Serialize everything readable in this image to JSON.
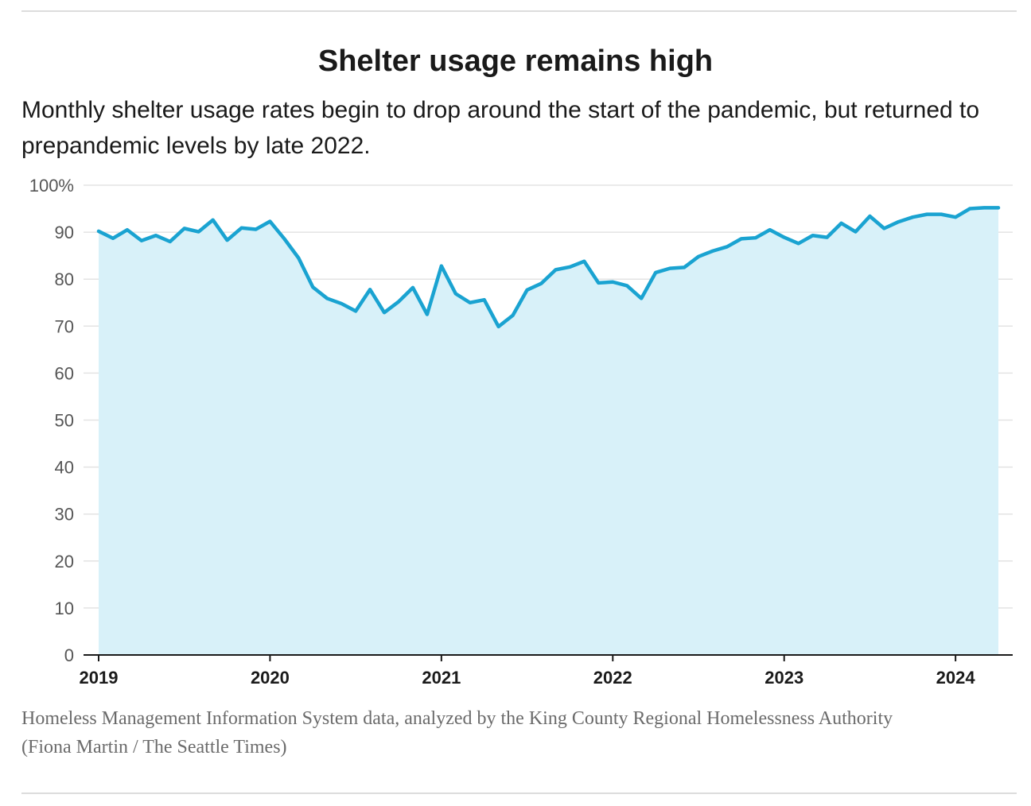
{
  "header": {
    "title": "Shelter usage remains high",
    "subtitle": "Monthly shelter usage rates begin to drop around the start of the pandemic, but returned to prepandemic levels by late 2022."
  },
  "footer": {
    "source": "Homeless Management Information System data, analyzed by the King County Regional Homelessness Authority",
    "credit": "(Fiona Martin / The Seattle Times)"
  },
  "colors": {
    "line": "#1aa3d1",
    "area": "#d8f1f9",
    "grid": "#e3e3e3",
    "axis": "#1a1a1a"
  },
  "chart_data": {
    "type": "area",
    "title": "Shelter usage remains high",
    "xlabel": "",
    "ylabel": "",
    "ylim": [
      0,
      100
    ],
    "grid": true,
    "y_ticks": [
      {
        "value": 100,
        "label": "100%"
      },
      {
        "value": 90,
        "label": "90"
      },
      {
        "value": 80,
        "label": "80"
      },
      {
        "value": 70,
        "label": "70"
      },
      {
        "value": 60,
        "label": "60"
      },
      {
        "value": 50,
        "label": "50"
      },
      {
        "value": 40,
        "label": "40"
      },
      {
        "value": 30,
        "label": "30"
      },
      {
        "value": 20,
        "label": "20"
      },
      {
        "value": 10,
        "label": "10"
      },
      {
        "value": 0,
        "label": "0"
      }
    ],
    "x_ticks": [
      {
        "value": "2019-01",
        "label": "2019"
      },
      {
        "value": "2020-01",
        "label": "2020"
      },
      {
        "value": "2021-01",
        "label": "2021"
      },
      {
        "value": "2022-01",
        "label": "2022"
      },
      {
        "value": "2023-01",
        "label": "2023"
      },
      {
        "value": "2024-01",
        "label": "2024"
      }
    ],
    "x": [
      "2019-01",
      "2019-02",
      "2019-03",
      "2019-04",
      "2019-05",
      "2019-06",
      "2019-07",
      "2019-08",
      "2019-09",
      "2019-10",
      "2019-11",
      "2019-12",
      "2020-01",
      "2020-02",
      "2020-03",
      "2020-04",
      "2020-05",
      "2020-06",
      "2020-07",
      "2020-08",
      "2020-09",
      "2020-10",
      "2020-11",
      "2020-12",
      "2021-01",
      "2021-02",
      "2021-03",
      "2021-04",
      "2021-05",
      "2021-06",
      "2021-07",
      "2021-08",
      "2021-09",
      "2021-10",
      "2021-11",
      "2021-12",
      "2022-01",
      "2022-02",
      "2022-03",
      "2022-04",
      "2022-05",
      "2022-06",
      "2022-07",
      "2022-08",
      "2022-09",
      "2022-10",
      "2022-11",
      "2022-12",
      "2023-01",
      "2023-02",
      "2023-03",
      "2023-04",
      "2023-05",
      "2023-06",
      "2023-07",
      "2023-08",
      "2023-09",
      "2023-10",
      "2023-11",
      "2023-12",
      "2024-01",
      "2024-02",
      "2024-03",
      "2024-04"
    ],
    "series": [
      {
        "values": [
          90.2,
          88.7,
          90.5,
          88.2,
          89.3,
          88.0,
          90.8,
          90.1,
          92.6,
          88.3,
          90.9,
          90.6,
          92.3,
          88.6,
          84.5,
          78.3,
          75.9,
          74.8,
          73.2,
          77.8,
          72.9,
          75.2,
          78.2,
          72.5,
          82.8,
          76.9,
          75.0,
          75.6,
          69.9,
          72.3,
          77.7,
          79.1,
          82.0,
          82.6,
          83.8,
          79.2,
          79.4,
          78.6,
          75.9,
          81.4,
          82.3,
          82.5,
          84.8,
          86.0,
          86.9,
          88.6,
          88.8,
          90.5,
          88.9,
          87.6,
          89.3,
          88.9,
          91.9,
          90.1,
          93.4,
          90.8,
          92.2,
          93.2,
          93.8,
          93.8,
          93.2,
          95.0,
          95.2,
          95.2
        ]
      }
    ]
  }
}
